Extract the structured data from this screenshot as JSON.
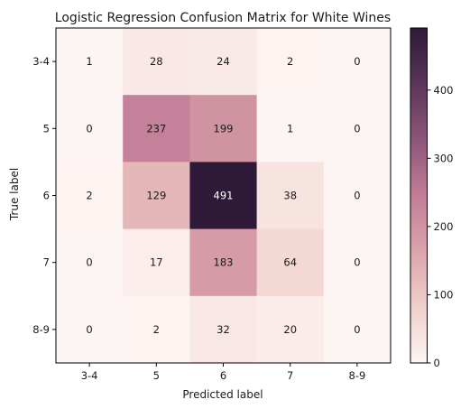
{
  "chart_data": {
    "type": "heatmap",
    "title": "Logistic Regression Confusion Matrix for White Wines",
    "xlabel": "Predicted label",
    "ylabel": "True label",
    "x_categories": [
      "3-4",
      "5",
      "6",
      "7",
      "8-9"
    ],
    "y_categories": [
      "3-4",
      "5",
      "6",
      "7",
      "8-9"
    ],
    "values": [
      [
        1,
        28,
        24,
        2,
        0
      ],
      [
        0,
        237,
        199,
        1,
        0
      ],
      [
        2,
        129,
        491,
        38,
        0
      ],
      [
        0,
        17,
        183,
        64,
        0
      ],
      [
        0,
        2,
        32,
        20,
        0
      ]
    ],
    "colorbar": {
      "min": 0,
      "max": 491,
      "ticks": [
        0,
        100,
        200,
        300,
        400
      ]
    },
    "colormap": [
      "#fdf5f3",
      "#f0d0cc",
      "#dba4ab",
      "#c27d97",
      "#8c5679",
      "#5a3659",
      "#2e1a38"
    ],
    "grid": false
  }
}
